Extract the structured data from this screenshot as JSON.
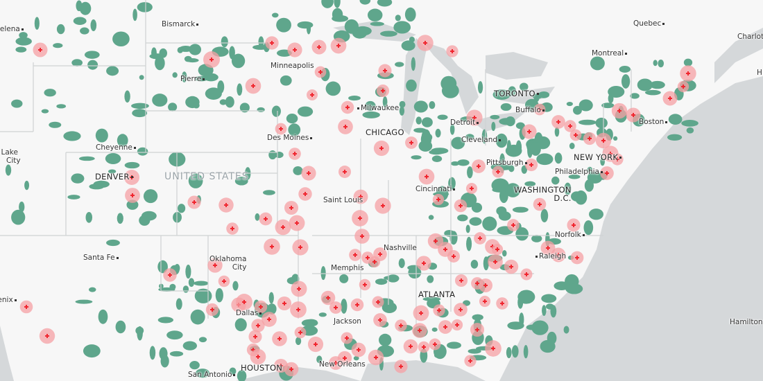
{
  "map": {
    "colors": {
      "land": "#f7f7f7",
      "water": "#d5d8da",
      "forest": "#5fa68c",
      "hotspot": "#f0262f",
      "hotspot_halo": "#f5a0a4",
      "border": "#c9cccd"
    },
    "marker_icon": "red-plus-icon",
    "country_label": "UNITED STATES",
    "cities": {
      "helena": "Helena",
      "bismarck": "Bismarck",
      "pierre": "Pierre",
      "minneapolis": "Minneapolis",
      "milwaukee": "Milwaukee",
      "chicago": "CHICAGO",
      "des_moines": "Des Moines",
      "cheyenne": "Cheyenne",
      "salt_lake_1": "Salt Lake",
      "salt_lake_2": "City",
      "denver": "DENVER",
      "saint_louis": "Saint Louis",
      "cincinnati": "Cincinnati",
      "pittsburgh": "Pittsburgh",
      "cleveland": "Cleveland",
      "detroit": "Detroit",
      "toronto": "TORONTO",
      "buffalo": "Buffalo",
      "quebec": "Quebec",
      "montreal": "Montreal",
      "charlot": "Charlot",
      "h": "H",
      "boston": "Boston",
      "new_york": "NEW YORK",
      "philadelphia": "Philadelphia",
      "washington_1": "WASHINGTON",
      "washington_2": "D.C.",
      "norfolk": "Norfolk",
      "raleigh": "Raleigh",
      "nashville": "Nashville",
      "memphis": "Memphis",
      "okc_1": "Oklahoma",
      "okc_2": "City",
      "santa_fe": "Santa Fe",
      "phoenix": "Phoenix",
      "atlanta": "ATLANTA",
      "jackson": "Jackson",
      "dallas": "Dallas",
      "new_orleans": "New Orleans",
      "houston": "HOUSTON",
      "san_antonio": "San Antonio",
      "hamilton": "Hamilton"
    }
  }
}
